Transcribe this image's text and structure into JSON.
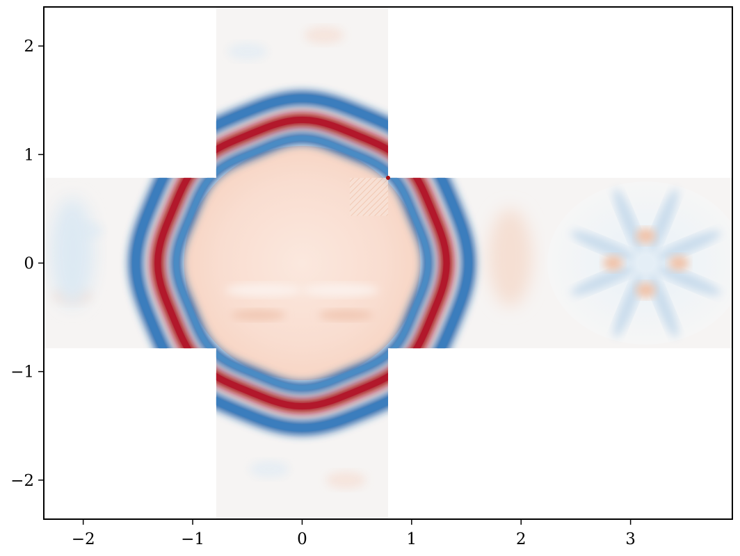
{
  "chart_data": {
    "type": "heatmap",
    "title": "",
    "xlabel": "",
    "ylabel": "",
    "xlim": [
      -2.36,
      3.93
    ],
    "ylim": [
      -2.36,
      2.36
    ],
    "grid": false,
    "colormap": "RdBu_r",
    "colors": {
      "positive_max": "#a50f15",
      "positive_mid": "#f4a582",
      "neutral": "#f7f7f7",
      "negative_mid": "#92c5de",
      "negative_max": "#1f5fa8"
    },
    "x_ticks": [
      {
        "value": -2,
        "label": "−2"
      },
      {
        "value": -1,
        "label": "−1"
      },
      {
        "value": 0,
        "label": "0"
      },
      {
        "value": 1,
        "label": "1"
      },
      {
        "value": 2,
        "label": "2"
      },
      {
        "value": 3,
        "label": "3"
      }
    ],
    "y_ticks": [
      {
        "value": 2,
        "label": "2"
      },
      {
        "value": 1,
        "label": "1"
      },
      {
        "value": 0,
        "label": "0"
      },
      {
        "value": -1,
        "label": "−1"
      },
      {
        "value": -2,
        "label": "−2"
      }
    ],
    "domain_patches": [
      {
        "name": "horizontal-arm",
        "x": [
          -2.36,
          3.93
        ],
        "y": [
          -0.785,
          0.785
        ]
      },
      {
        "name": "vertical-arm",
        "x": [
          -0.785,
          0.785
        ],
        "y": [
          -2.36,
          2.36
        ]
      }
    ],
    "features": {
      "wave_ring": {
        "center": [
          0,
          0
        ],
        "radius": 1.3,
        "outer_sign": "negative",
        "middle_sign": "positive"
      },
      "inner_field": {
        "sign": "positive",
        "amplitude": "weak"
      },
      "corner_artifact": {
        "at": [
          0.785,
          0.785
        ]
      },
      "spoke_pattern_center": [
        3.14,
        0
      ]
    }
  }
}
